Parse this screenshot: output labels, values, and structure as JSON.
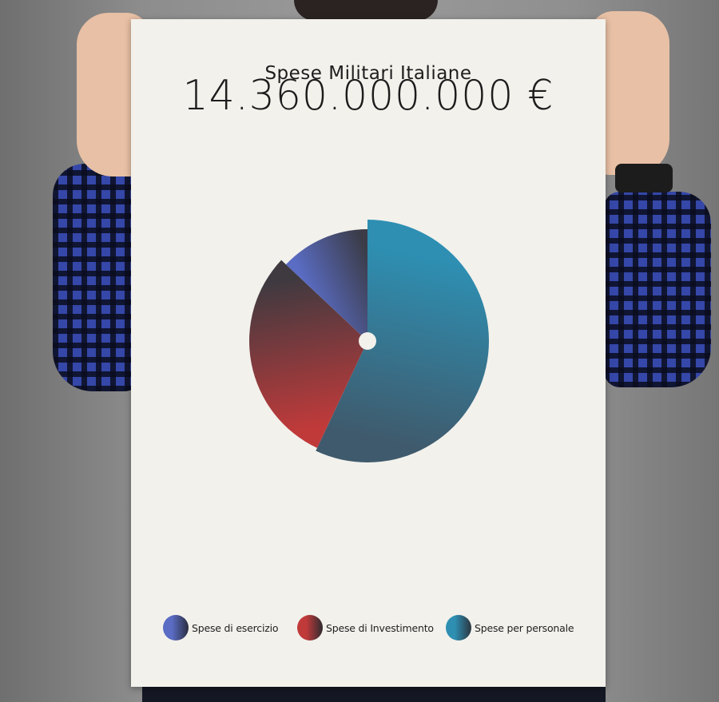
{
  "poster": {
    "title": "Spese Militari Italiane",
    "total": "14.360.000.000 €"
  },
  "chart_data": {
    "type": "pie",
    "title": "Spese Militari Italiane",
    "subtitle": "14.360.000.000 €",
    "legend_position": "bottom",
    "slices": [
      {
        "label": "Spese per personale",
        "value": 57,
        "color": "#2e8fb2",
        "color_dark": "#3f5a6c"
      },
      {
        "label": "Spese di Investimento",
        "value": 30,
        "color": "#c13a3a",
        "color_dark": "#3e3a40"
      },
      {
        "label": "Spese di esercizio",
        "value": 13,
        "color": "#5a6cc4",
        "color_dark": "#3b3c48"
      }
    ],
    "legend": [
      {
        "label": "Spese di esercizio",
        "color": "#5a6cc4",
        "color_dark": "#2a2d3e"
      },
      {
        "label": "Spese di Investimento",
        "color": "#c13a3a",
        "color_dark": "#2f2b30"
      },
      {
        "label": "Spese per personale",
        "color": "#2e8fb2",
        "color_dark": "#2b3640"
      }
    ]
  }
}
